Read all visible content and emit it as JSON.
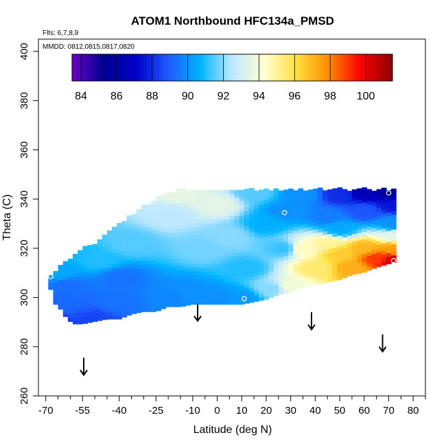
{
  "chart_data": {
    "type": "heatmap",
    "title": "ATOM1 Northbound HFC134a_PMSD",
    "xlabel": "Latitude (deg N)",
    "ylabel": "Theta (C)",
    "annotations": [
      "Flts: 6,7,8,9",
      "MMDD: 0812,0815,0817,0820"
    ],
    "xlim": [
      -73,
      85
    ],
    "ylim": [
      260,
      405
    ],
    "x_ticks": [
      -70,
      -55,
      -40,
      -25,
      -10,
      0,
      10,
      20,
      30,
      40,
      50,
      60,
      70,
      80
    ],
    "y_ticks": [
      260,
      280,
      300,
      320,
      340,
      360,
      380,
      400
    ],
    "colorbar": {
      "min": 83.5,
      "max": 101.5,
      "ticks": [
        84,
        86,
        88,
        90,
        92,
        94,
        96,
        98,
        100
      ],
      "colors": [
        "#6a00c8",
        "#000090",
        "#0000c8",
        "#1e5aff",
        "#00b4ff",
        "#bfe8ff",
        "#ffffd0",
        "#ffe040",
        "#ff8c00",
        "#ff0000",
        "#8b0000"
      ]
    },
    "anchors": [
      {
        "lat": -68,
        "theta": 290,
        "value": 88.3
      },
      {
        "lat": -50,
        "theta": 291,
        "value": 88.5
      },
      {
        "lat": -62,
        "theta": 298,
        "value": 89.2
      },
      {
        "lat": -62,
        "theta": 305,
        "value": 89.3
      },
      {
        "lat": -40,
        "theta": 298,
        "value": 89.4
      },
      {
        "lat": -40,
        "theta": 308,
        "value": 89.4
      },
      {
        "lat": -20,
        "theta": 300,
        "value": 89.8
      },
      {
        "lat": -10,
        "theta": 302,
        "value": 90.0
      },
      {
        "lat": 0,
        "theta": 300,
        "value": 90.0
      },
      {
        "lat": 10,
        "theta": 300,
        "value": 90.2
      },
      {
        "lat": -65,
        "theta": 310,
        "value": 90.5
      },
      {
        "lat": -48,
        "theta": 315,
        "value": 91.0
      },
      {
        "lat": -35,
        "theta": 322,
        "value": 91.5
      },
      {
        "lat": -20,
        "theta": 333,
        "value": 92.5
      },
      {
        "lat": -15,
        "theta": 343,
        "value": 93.6
      },
      {
        "lat": -5,
        "theta": 320,
        "value": 91.8
      },
      {
        "lat": 0,
        "theta": 338,
        "value": 93.5
      },
      {
        "lat": 5,
        "theta": 325,
        "value": 92.0
      },
      {
        "lat": 12,
        "theta": 312,
        "value": 91.0
      },
      {
        "lat": 15,
        "theta": 343,
        "value": 91.5
      },
      {
        "lat": 20,
        "theta": 330,
        "value": 90.6
      },
      {
        "lat": 22,
        "theta": 304,
        "value": 92.0
      },
      {
        "lat": 28,
        "theta": 335,
        "value": 90.0
      },
      {
        "lat": 27,
        "theta": 320,
        "value": 91.2
      },
      {
        "lat": 30,
        "theta": 305,
        "value": 94.0
      },
      {
        "lat": 35,
        "theta": 342,
        "value": 90.0
      },
      {
        "lat": 35,
        "theta": 320,
        "value": 94.5
      },
      {
        "lat": 40,
        "theta": 312,
        "value": 95.5
      },
      {
        "lat": 45,
        "theta": 333,
        "value": 89.6
      },
      {
        "lat": 45,
        "theta": 322,
        "value": 95.0
      },
      {
        "lat": 50,
        "theta": 342,
        "value": 88.0
      },
      {
        "lat": 50,
        "theta": 328,
        "value": 90.5
      },
      {
        "lat": 50,
        "theta": 318,
        "value": 96.5
      },
      {
        "lat": 55,
        "theta": 312,
        "value": 97.2
      },
      {
        "lat": 60,
        "theta": 343,
        "value": 86.5
      },
      {
        "lat": 60,
        "theta": 335,
        "value": 88.8
      },
      {
        "lat": 60,
        "theta": 320,
        "value": 97.0
      },
      {
        "lat": 65,
        "theta": 316,
        "value": 99.0
      },
      {
        "lat": 72,
        "theta": 343,
        "value": 85.5
      },
      {
        "lat": 72,
        "theta": 338,
        "value": 87.5
      },
      {
        "lat": 72,
        "theta": 330,
        "value": 90.0
      },
      {
        "lat": 72,
        "theta": 325,
        "value": 93.5
      },
      {
        "lat": 72,
        "theta": 320,
        "value": 97.5
      },
      {
        "lat": 72,
        "theta": 315,
        "value": 100.5
      }
    ],
    "domain_bounds": [
      {
        "lat": -68,
        "theta_min": 304,
        "theta_max": 309
      },
      {
        "lat": -66,
        "theta_min": 298,
        "theta_max": 311
      },
      {
        "lat": -64,
        "theta_min": 296,
        "theta_max": 313
      },
      {
        "lat": -62,
        "theta_min": 293,
        "theta_max": 314
      },
      {
        "lat": -60,
        "theta_min": 291,
        "theta_max": 316
      },
      {
        "lat": -58,
        "theta_min": 290,
        "theta_max": 318
      },
      {
        "lat": -55,
        "theta_min": 290,
        "theta_max": 320
      },
      {
        "lat": -50,
        "theta_min": 291,
        "theta_max": 322
      },
      {
        "lat": -45,
        "theta_min": 292,
        "theta_max": 326
      },
      {
        "lat": -40,
        "theta_min": 292,
        "theta_max": 330
      },
      {
        "lat": -35,
        "theta_min": 294,
        "theta_max": 334
      },
      {
        "lat": -30,
        "theta_min": 295,
        "theta_max": 337
      },
      {
        "lat": -25,
        "theta_min": 295,
        "theta_max": 340
      },
      {
        "lat": -20,
        "theta_min": 297,
        "theta_max": 343
      },
      {
        "lat": -15,
        "theta_min": 297,
        "theta_max": 344
      },
      {
        "lat": -10,
        "theta_min": 298,
        "theta_max": 344
      },
      {
        "lat": -5,
        "theta_min": 298,
        "theta_max": 344
      },
      {
        "lat": 0,
        "theta_min": 298,
        "theta_max": 344
      },
      {
        "lat": 5,
        "theta_min": 298,
        "theta_max": 344
      },
      {
        "lat": 10,
        "theta_min": 298,
        "theta_max": 344
      },
      {
        "lat": 15,
        "theta_min": 299,
        "theta_max": 344
      },
      {
        "lat": 20,
        "theta_min": 300,
        "theta_max": 344
      },
      {
        "lat": 25,
        "theta_min": 302,
        "theta_max": 344
      },
      {
        "lat": 30,
        "theta_min": 303,
        "theta_max": 344
      },
      {
        "lat": 35,
        "theta_min": 305,
        "theta_max": 344
      },
      {
        "lat": 40,
        "theta_min": 306,
        "theta_max": 344
      },
      {
        "lat": 45,
        "theta_min": 307,
        "theta_max": 344
      },
      {
        "lat": 50,
        "theta_min": 308,
        "theta_max": 344
      },
      {
        "lat": 55,
        "theta_min": 310,
        "theta_max": 344
      },
      {
        "lat": 60,
        "theta_min": 311,
        "theta_max": 344
      },
      {
        "lat": 65,
        "theta_min": 313,
        "theta_max": 344
      },
      {
        "lat": 72,
        "theta_min": 315,
        "theta_max": 344
      }
    ],
    "markers": [
      {
        "lat": 70,
        "theta": 342.5
      },
      {
        "lat": 27.5,
        "theta": 334.5
      },
      {
        "lat": 11,
        "theta": 299.5
      },
      {
        "lat": -68,
        "theta": 308.5
      },
      {
        "lat": 72,
        "theta": 315
      }
    ],
    "arrows": [
      {
        "lat": -54.5,
        "theta_top": 275.5,
        "theta_bottom": 268.5
      },
      {
        "lat": -8,
        "theta_top": 297.5,
        "theta_bottom": 290.5
      },
      {
        "lat": 38.5,
        "theta_top": 294,
        "theta_bottom": 287
      },
      {
        "lat": 67.5,
        "theta_top": 285,
        "theta_bottom": 278
      }
    ]
  }
}
